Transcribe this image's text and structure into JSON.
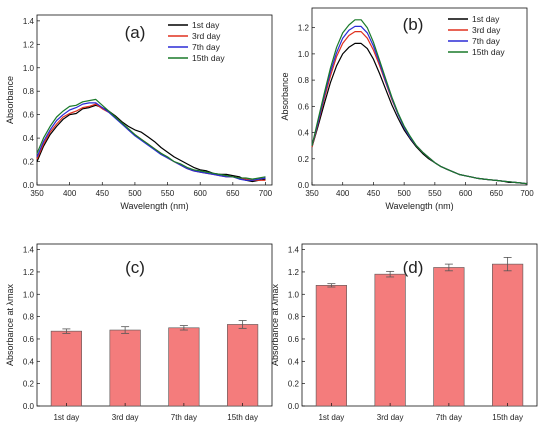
{
  "chart_data": [
    {
      "panel": "(a)",
      "type": "line",
      "xlabel": "Wavelength (nm)",
      "ylabel": "Absorbance",
      "xlim": [
        350,
        710
      ],
      "ylim": [
        0,
        1.45
      ],
      "xticks": [
        350,
        400,
        450,
        500,
        550,
        600,
        650,
        700
      ],
      "yticks": [
        0.0,
        0.2,
        0.4,
        0.6,
        0.8,
        1.0,
        1.2,
        1.4
      ],
      "legend": "top-right",
      "x": [
        350,
        360,
        370,
        380,
        390,
        400,
        410,
        420,
        430,
        440,
        450,
        460,
        470,
        480,
        490,
        500,
        510,
        520,
        530,
        540,
        550,
        560,
        570,
        580,
        590,
        600,
        610,
        620,
        630,
        640,
        650,
        660,
        670,
        680,
        690,
        700
      ],
      "series": [
        {
          "name": "1st day",
          "color": "#000000",
          "values": [
            0.2,
            0.33,
            0.43,
            0.5,
            0.56,
            0.6,
            0.61,
            0.65,
            0.66,
            0.68,
            0.66,
            0.63,
            0.59,
            0.54,
            0.5,
            0.47,
            0.45,
            0.41,
            0.37,
            0.32,
            0.28,
            0.24,
            0.21,
            0.18,
            0.15,
            0.13,
            0.12,
            0.1,
            0.09,
            0.09,
            0.08,
            0.07,
            0.04,
            0.03,
            0.04,
            0.05
          ]
        },
        {
          "name": "3rd day",
          "color": "#e0301e",
          "values": [
            0.22,
            0.35,
            0.45,
            0.52,
            0.58,
            0.61,
            0.63,
            0.66,
            0.67,
            0.69,
            0.65,
            0.62,
            0.58,
            0.53,
            0.47,
            0.43,
            0.39,
            0.35,
            0.31,
            0.27,
            0.23,
            0.2,
            0.17,
            0.14,
            0.12,
            0.11,
            0.1,
            0.09,
            0.08,
            0.07,
            0.07,
            0.06,
            0.05,
            0.04,
            0.04,
            0.04
          ]
        },
        {
          "name": "7th day",
          "color": "#2b2bd6",
          "values": [
            0.24,
            0.37,
            0.47,
            0.55,
            0.6,
            0.64,
            0.66,
            0.69,
            0.7,
            0.7,
            0.66,
            0.62,
            0.57,
            0.52,
            0.47,
            0.42,
            0.38,
            0.34,
            0.3,
            0.26,
            0.23,
            0.2,
            0.17,
            0.14,
            0.12,
            0.11,
            0.1,
            0.09,
            0.08,
            0.07,
            0.07,
            0.05,
            0.04,
            0.04,
            0.05,
            0.06
          ]
        },
        {
          "name": "15th day",
          "color": "#1a7a2a",
          "values": [
            0.27,
            0.4,
            0.5,
            0.58,
            0.63,
            0.67,
            0.68,
            0.71,
            0.72,
            0.73,
            0.68,
            0.63,
            0.58,
            0.53,
            0.48,
            0.43,
            0.39,
            0.35,
            0.31,
            0.27,
            0.24,
            0.2,
            0.18,
            0.15,
            0.13,
            0.12,
            0.11,
            0.1,
            0.09,
            0.08,
            0.07,
            0.06,
            0.06,
            0.05,
            0.06,
            0.07
          ]
        }
      ]
    },
    {
      "panel": "(b)",
      "type": "line",
      "xlabel": "Wavelength (nm)",
      "ylabel": "Absorbance",
      "xlim": [
        350,
        700
      ],
      "ylim": [
        0,
        1.35
      ],
      "xticks": [
        350,
        400,
        450,
        500,
        550,
        600,
        650,
        700
      ],
      "yticks": [
        0.0,
        0.2,
        0.4,
        0.6,
        0.8,
        1.0,
        1.2
      ],
      "legend": "top-right",
      "x": [
        350,
        360,
        370,
        380,
        390,
        400,
        410,
        420,
        430,
        440,
        450,
        460,
        470,
        480,
        490,
        500,
        510,
        520,
        530,
        540,
        550,
        560,
        570,
        580,
        590,
        600,
        610,
        620,
        630,
        640,
        650,
        660,
        670,
        680,
        690,
        700
      ],
      "series": [
        {
          "name": "1st day",
          "color": "#000000",
          "values": [
            0.29,
            0.45,
            0.62,
            0.78,
            0.91,
            1.0,
            1.05,
            1.08,
            1.08,
            1.04,
            0.96,
            0.85,
            0.73,
            0.61,
            0.51,
            0.42,
            0.35,
            0.29,
            0.24,
            0.2,
            0.17,
            0.14,
            0.12,
            0.1,
            0.08,
            0.07,
            0.06,
            0.05,
            0.045,
            0.04,
            0.035,
            0.03,
            0.02,
            0.02,
            0.015,
            0.01
          ]
        },
        {
          "name": "3rd day",
          "color": "#e0301e",
          "values": [
            0.29,
            0.47,
            0.66,
            0.83,
            0.98,
            1.08,
            1.14,
            1.17,
            1.17,
            1.12,
            1.03,
            0.91,
            0.78,
            0.65,
            0.54,
            0.44,
            0.36,
            0.3,
            0.25,
            0.21,
            0.17,
            0.14,
            0.12,
            0.1,
            0.08,
            0.07,
            0.06,
            0.05,
            0.045,
            0.04,
            0.035,
            0.03,
            0.025,
            0.02,
            0.015,
            0.01
          ]
        },
        {
          "name": "7th day",
          "color": "#2b2bd6",
          "values": [
            0.3,
            0.48,
            0.68,
            0.86,
            1.01,
            1.12,
            1.18,
            1.21,
            1.21,
            1.16,
            1.06,
            0.93,
            0.79,
            0.66,
            0.54,
            0.44,
            0.36,
            0.3,
            0.25,
            0.21,
            0.17,
            0.14,
            0.12,
            0.1,
            0.08,
            0.07,
            0.06,
            0.05,
            0.045,
            0.04,
            0.035,
            0.03,
            0.025,
            0.02,
            0.015,
            0.01
          ]
        },
        {
          "name": "15th day",
          "color": "#1a7a2a",
          "values": [
            0.3,
            0.5,
            0.7,
            0.89,
            1.05,
            1.16,
            1.22,
            1.26,
            1.26,
            1.2,
            1.09,
            0.95,
            0.81,
            0.67,
            0.55,
            0.45,
            0.37,
            0.3,
            0.25,
            0.21,
            0.17,
            0.14,
            0.12,
            0.1,
            0.08,
            0.07,
            0.06,
            0.05,
            0.045,
            0.04,
            0.035,
            0.03,
            0.025,
            0.02,
            0.015,
            0.01
          ]
        }
      ]
    },
    {
      "panel": "(c)",
      "type": "bar",
      "xlabel": "",
      "ylabel": "Absorbance at λmax",
      "ylim": [
        0,
        1.45
      ],
      "yticks": [
        0.0,
        0.2,
        0.4,
        0.6,
        0.8,
        1.0,
        1.2,
        1.4
      ],
      "categories": [
        "1st day",
        "3rd day",
        "7th day",
        "15th day"
      ],
      "values": [
        0.67,
        0.68,
        0.7,
        0.73
      ],
      "errors": [
        0.02,
        0.03,
        0.02,
        0.035
      ],
      "color": "#f47c7c"
    },
    {
      "panel": "(d)",
      "type": "bar",
      "xlabel": "",
      "ylabel": "Absorbance at λmax",
      "ylim": [
        0,
        1.45
      ],
      "yticks": [
        0.0,
        0.2,
        0.4,
        0.6,
        0.8,
        1.0,
        1.2,
        1.4
      ],
      "categories": [
        "1st day",
        "3rd day",
        "7th day",
        "15th day"
      ],
      "values": [
        1.08,
        1.18,
        1.24,
        1.27
      ],
      "errors": [
        0.015,
        0.025,
        0.03,
        0.06
      ],
      "color": "#f47c7c"
    }
  ]
}
